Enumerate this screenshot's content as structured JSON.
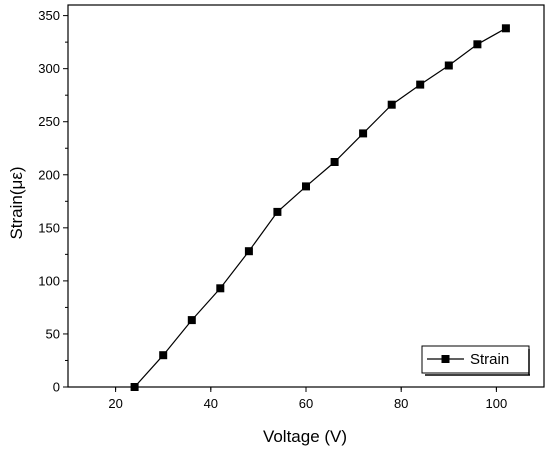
{
  "chart_data": {
    "type": "line",
    "xlabel": "Voltage (V)",
    "ylabel": "Strain(με)",
    "xlim": [
      10,
      110
    ],
    "ylim": [
      0,
      360
    ],
    "xticks": [
      20,
      40,
      60,
      80,
      100
    ],
    "yticks": [
      0,
      50,
      100,
      150,
      200,
      250,
      300,
      350
    ],
    "grid": false,
    "legend_position": "bottom-right",
    "series": [
      {
        "name": "Strain",
        "marker": "square",
        "color": "#000000",
        "x": [
          24,
          30,
          36,
          42,
          48,
          54,
          60,
          66,
          72,
          78,
          84,
          90,
          96,
          102
        ],
        "y": [
          0,
          30,
          63,
          93,
          128,
          165,
          189,
          212,
          239,
          266,
          285,
          303,
          323,
          338
        ]
      }
    ]
  }
}
